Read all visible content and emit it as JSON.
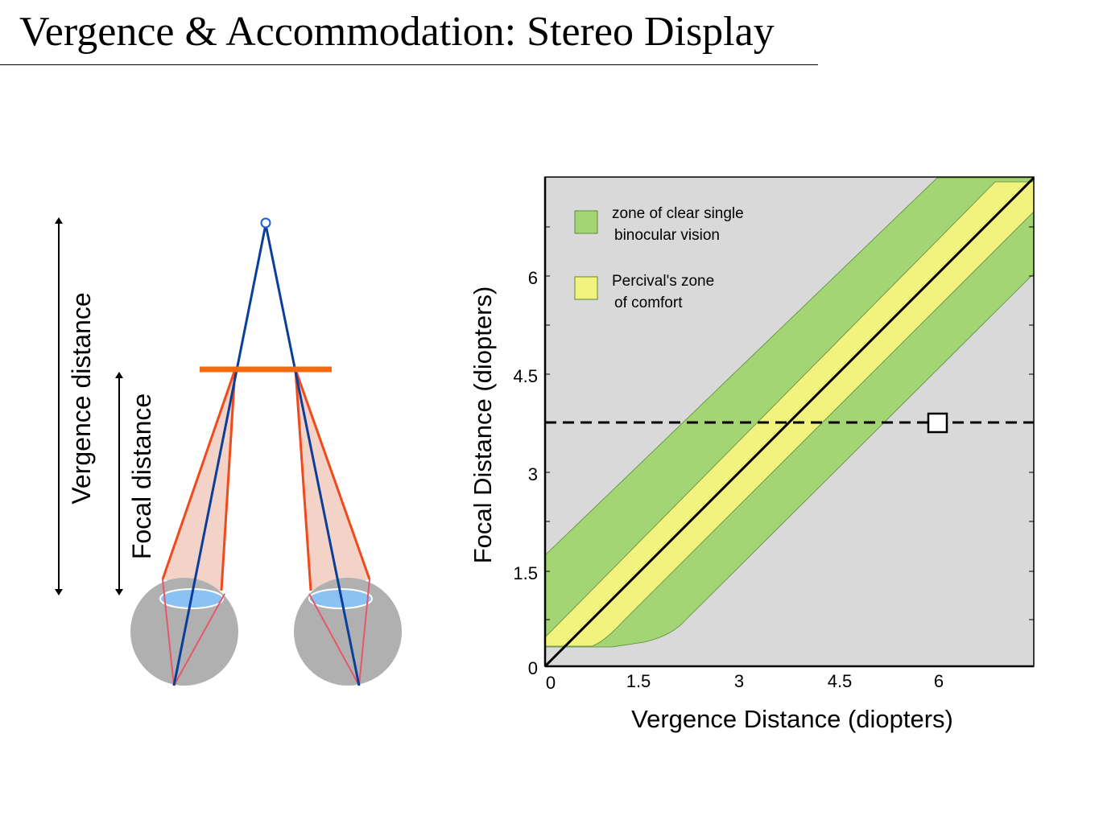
{
  "title": "Vergence & Accommodation: Stereo Display",
  "diagram": {
    "vergence_label": "Vergence distance",
    "focal_label": "Focal distance"
  },
  "chart_data": {
    "type": "area",
    "xlabel": "Vergence Distance (diopters)",
    "ylabel": "Focal Distance (diopters)",
    "xlim": [
      0,
      7.4
    ],
    "ylim": [
      0,
      7.4
    ],
    "x_ticks": [
      "0",
      "1.5",
      "3",
      "4.5",
      "6"
    ],
    "y_ticks": [
      "0",
      "1.5",
      "3",
      "4.5",
      "6"
    ],
    "legend": [
      {
        "label_line1": "zone of clear single",
        "label_line2": "binocular vision",
        "color": "#a3d574"
      },
      {
        "label_line1": "Percival's zone",
        "label_line2": "of comfort",
        "color": "#f2f27e"
      }
    ],
    "reference_line": {
      "from": [
        0,
        0
      ],
      "to": [
        7.4,
        7.4
      ]
    },
    "dashed_line_focal": 3.75,
    "marker_point": {
      "x": 6,
      "y": 3.75
    },
    "colors": {
      "background": "#d9d9d9",
      "green_zone": "#a3d574",
      "yellow_zone": "#f2f27e"
    }
  }
}
